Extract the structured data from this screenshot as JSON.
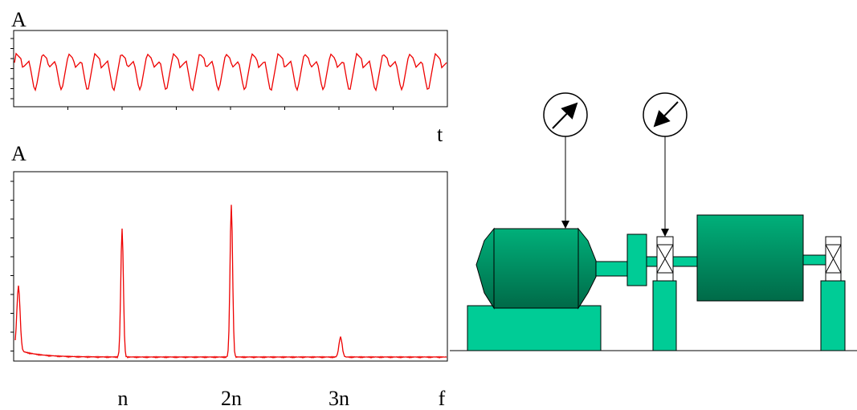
{
  "time_plot": {
    "y_label": "A",
    "x_label": "t"
  },
  "spectrum_plot": {
    "y_label": "A",
    "x_labels": [
      "n",
      "2n",
      "3n"
    ],
    "x_axis_label": "f"
  }
}
